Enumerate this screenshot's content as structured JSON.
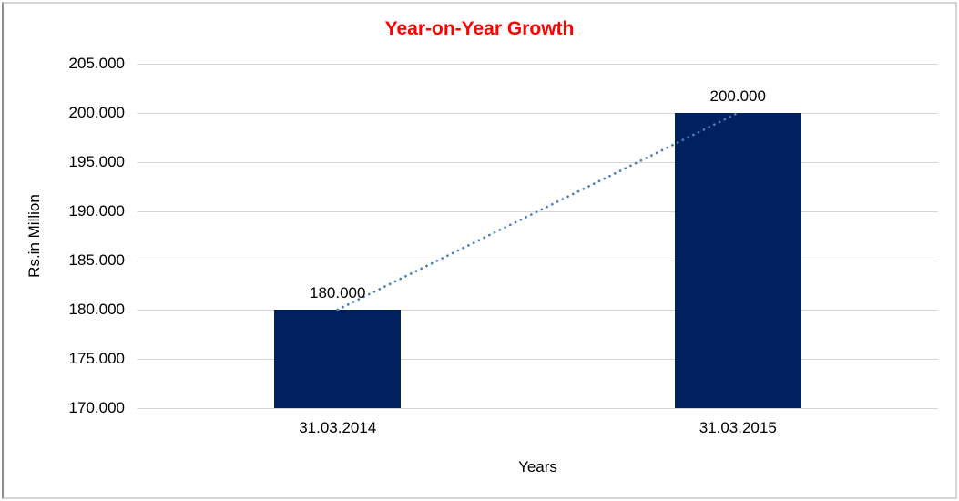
{
  "chart_data": {
    "type": "bar",
    "title": "Year-on-Year Growth",
    "xlabel": "Years",
    "ylabel": "Rs.in Million",
    "categories": [
      "31.03.2014",
      "31.03.2015"
    ],
    "values": [
      180,
      200
    ],
    "value_labels": [
      "180.000",
      "200.000"
    ],
    "ylim": [
      170,
      205
    ],
    "ytick_step": 5,
    "ytick_labels": [
      "170.000",
      "175.000",
      "180.000",
      "185.000",
      "190.000",
      "195.000",
      "200.000",
      "205.000"
    ],
    "grid": true,
    "legend": "none",
    "trendline": {
      "style": "dotted",
      "color": "#4a7ebf",
      "connects": "tops of bars",
      "from_value": 180,
      "to_value": 200
    },
    "colors": {
      "bar": "#00215e",
      "title": "#ff0000",
      "gridline": "#d6d6d6",
      "text": "#000000",
      "frame_border": "#8c8c8c"
    }
  }
}
